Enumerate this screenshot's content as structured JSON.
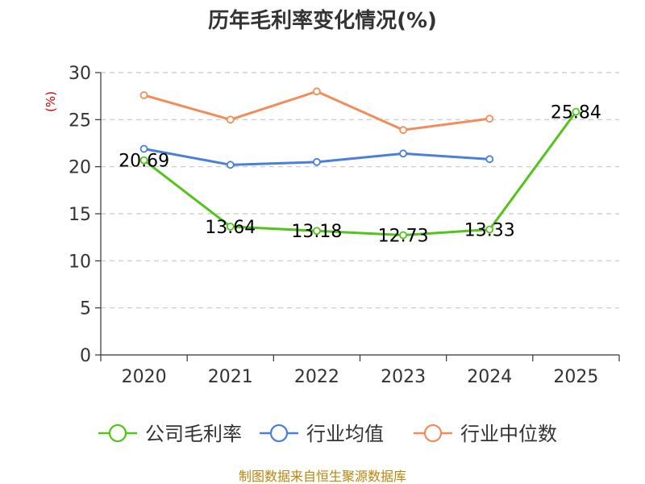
{
  "chart_data": {
    "type": "line",
    "title": "历年毛利率变化情况(%)",
    "ylabel": "(%)",
    "xlabel": "",
    "categories": [
      "2020",
      "2021",
      "2022",
      "2023",
      "2024",
      "2025"
    ],
    "ylim": [
      0,
      30
    ],
    "yticks": [
      0,
      5,
      10,
      15,
      20,
      25,
      30
    ],
    "grid": true,
    "legend_position": "bottom",
    "series": [
      {
        "name": "公司毛利率",
        "color": "#52c41a",
        "values": [
          20.69,
          13.64,
          13.18,
          12.73,
          13.33,
          25.84
        ],
        "labels": [
          "20.69",
          "13.64",
          "13.18",
          "12.73",
          "13.33",
          "25.84"
        ]
      },
      {
        "name": "行业均值",
        "color": "#4a7fdc",
        "values": [
          21.9,
          20.2,
          20.5,
          21.4,
          20.8,
          null
        ]
      },
      {
        "name": "行业中位数",
        "color": "#f28c5a",
        "values": [
          27.6,
          25.0,
          28.0,
          23.9,
          25.1,
          null
        ]
      }
    ]
  },
  "source_note": "制图数据来自恒生聚源数据库"
}
